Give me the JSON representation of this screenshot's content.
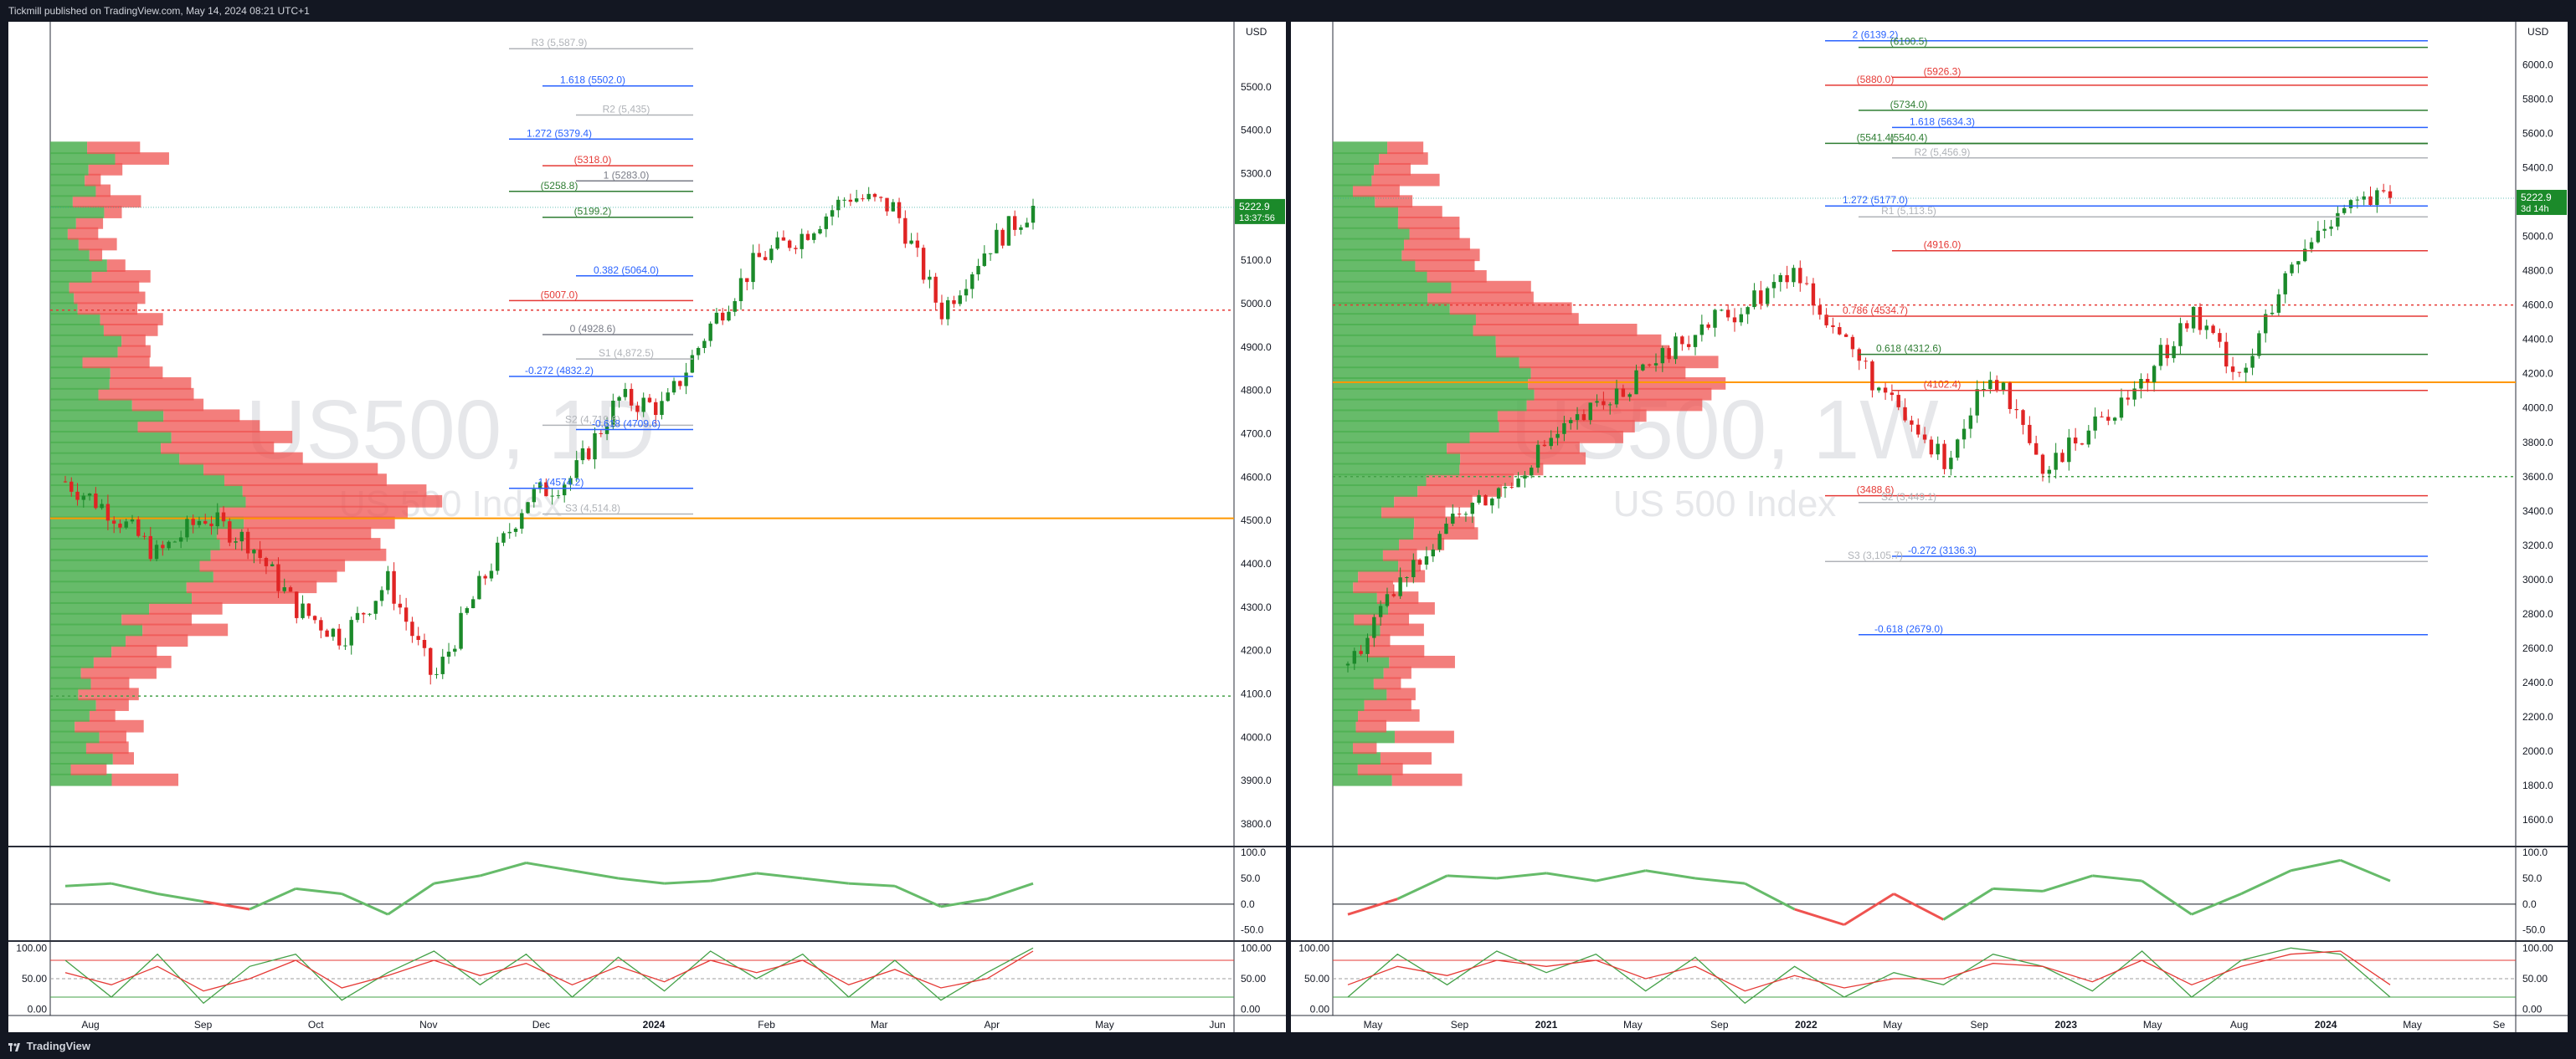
{
  "header": {
    "publisher": "Tickmill published on TradingView.com, May 14, 2024 08:21 UTC+1"
  },
  "footer": {
    "brand": "TradingView"
  },
  "colors": {
    "up": "#26a69a",
    "down": "#ef5350",
    "bullGreen": "#2e7d32",
    "bearRed": "#e53935",
    "orange": "#ff9800",
    "blue": "#2962ff"
  },
  "chart_data": [
    {
      "type": "line",
      "symbol_watermark": "US500, 1D",
      "subtitle_watermark": "US 500 Index",
      "currency": "USD",
      "price_badge": {
        "value": "5222.9",
        "countdown": "13:37:56"
      },
      "ylim": [
        3750,
        5650
      ],
      "y_ticks": [
        "5500.0",
        "5400.0",
        "5300.0",
        "5200.0",
        "5100.0",
        "5000.0",
        "4900.0",
        "4800.0",
        "4700.0",
        "4600.0",
        "4500.0",
        "4400.0",
        "4300.0",
        "4200.0",
        "4100.0",
        "4000.0",
        "3900.0",
        "3800.0"
      ],
      "x_ticks": [
        "Aug",
        "Sep",
        "Oct",
        "Nov",
        "Dec",
        "2024",
        "Feb",
        "Mar",
        "Apr",
        "May",
        "Jun"
      ],
      "close_path": [
        {
          "x": "Aug",
          "y": 4590
        },
        {
          "x": "Aug",
          "y": 4520
        },
        {
          "x": "Aug",
          "y": 4420
        },
        {
          "x": "Sep",
          "y": 4510
        },
        {
          "x": "Sep",
          "y": 4450
        },
        {
          "x": "Sep",
          "y": 4300
        },
        {
          "x": "Oct",
          "y": 4230
        },
        {
          "x": "Oct",
          "y": 4360
        },
        {
          "x": "Oct",
          "y": 4130
        },
        {
          "x": "Nov",
          "y": 4350
        },
        {
          "x": "Nov",
          "y": 4550
        },
        {
          "x": "Dec",
          "y": 4600
        },
        {
          "x": "Dec",
          "y": 4780
        },
        {
          "x": "2024",
          "y": 4760
        },
        {
          "x": "Feb",
          "y": 4950
        },
        {
          "x": "Feb",
          "y": 5100
        },
        {
          "x": "Mar",
          "y": 5160
        },
        {
          "x": "Mar",
          "y": 5250
        },
        {
          "x": "Apr",
          "y": 5220
        },
        {
          "x": "Apr",
          "y": 4980
        },
        {
          "x": "May",
          "y": 5130
        },
        {
          "x": "May",
          "y": 5222
        }
      ],
      "levels": [
        {
          "label": "R3 (5,587.9)",
          "value": 5587.9,
          "color": "#b0b3b8"
        },
        {
          "label": "1.618 (5502.0)",
          "value": 5502.0,
          "color": "#2962ff"
        },
        {
          "label": "R2 (5,435)",
          "value": 5435,
          "color": "#b0b3b8"
        },
        {
          "label": "1.272 (5379.4)",
          "value": 5379.4,
          "color": "#2962ff"
        },
        {
          "label": "(5318.0)",
          "value": 5318.0,
          "color": "#e53935"
        },
        {
          "label": "1 (5283.0)",
          "value": 5283.0,
          "color": "#787b86"
        },
        {
          "label": "(5258.8)",
          "value": 5258.8,
          "color": "#2e7d32"
        },
        {
          "label": "(5199.2)",
          "value": 5199.2,
          "color": "#2e7d32"
        },
        {
          "label": "0.382 (5064.0)",
          "value": 5064.0,
          "color": "#2962ff"
        },
        {
          "label": "(5007.0)",
          "value": 5007.0,
          "color": "#e53935"
        },
        {
          "label": "0 (4928.6)",
          "value": 4928.6,
          "color": "#787b86"
        },
        {
          "label": "S1 (4,872.5)",
          "value": 4872.5,
          "color": "#b0b3b8"
        },
        {
          "label": "-0.272 (4832.2)",
          "value": 4832.2,
          "color": "#2962ff"
        },
        {
          "label": "S2 (4,719.6)",
          "value": 4719.6,
          "color": "#b0b3b8"
        },
        {
          "label": "-0.618 (4709.6)",
          "value": 4709.6,
          "color": "#2962ff"
        },
        {
          "label": "-1 (4574.2)",
          "value": 4574.2,
          "color": "#2962ff"
        },
        {
          "label": "S3 (4,514.8)",
          "value": 4514.8,
          "color": "#b0b3b8"
        }
      ],
      "orange_level": 4505,
      "red_dotted_level": 4985,
      "green_dotted_level": 4095,
      "rsi": {
        "ticks": [
          "100.0",
          "50.0",
          "0.0",
          "-50.0"
        ],
        "ylim": [
          -70,
          110
        ],
        "values": [
          35,
          40,
          20,
          5,
          -10,
          30,
          20,
          -20,
          40,
          55,
          80,
          65,
          50,
          40,
          45,
          60,
          50,
          40,
          35,
          -5,
          10,
          40
        ]
      },
      "stoch": {
        "ticks": [
          "100.00",
          "50.00",
          "0.00"
        ],
        "ylim": [
          -10,
          110
        ],
        "k": [
          80,
          20,
          90,
          10,
          70,
          90,
          15,
          60,
          95,
          40,
          90,
          20,
          85,
          30,
          95,
          50,
          90,
          20,
          80,
          15,
          60,
          100
        ],
        "d": [
          60,
          40,
          70,
          30,
          50,
          80,
          35,
          55,
          80,
          55,
          75,
          40,
          70,
          45,
          80,
          60,
          80,
          40,
          65,
          35,
          50,
          95
        ]
      }
    },
    {
      "type": "line",
      "symbol_watermark": "US500, 1W",
      "subtitle_watermark": "US 500 Index",
      "currency": "USD",
      "price_badge": {
        "value": "5222.9",
        "countdown": "3d 14h"
      },
      "ylim": [
        1450,
        6250
      ],
      "y_ticks": [
        "6000.0",
        "5800.0",
        "5600.0",
        "5400.0",
        "5200.0",
        "5000.0",
        "4800.0",
        "4600.0",
        "4400.0",
        "4200.0",
        "4000.0",
        "3800.0",
        "3600.0",
        "3400.0",
        "3200.0",
        "3000.0",
        "2800.0",
        "2600.0",
        "2400.0",
        "2200.0",
        "2000.0",
        "1800.0",
        "1600.0"
      ],
      "x_ticks": [
        "May",
        "Sep",
        "2021",
        "May",
        "Sep",
        "2022",
        "May",
        "Sep",
        "2023",
        "May",
        "Aug",
        "2024",
        "May",
        "Se"
      ],
      "close_path": [
        {
          "x": "May",
          "y": 2500
        },
        {
          "x": "May",
          "y": 2950
        },
        {
          "x": "Sep",
          "y": 3350
        },
        {
          "x": "Sep",
          "y": 3500
        },
        {
          "x": "2021",
          "y": 3800
        },
        {
          "x": "2021",
          "y": 4000
        },
        {
          "x": "May",
          "y": 4200
        },
        {
          "x": "Sep",
          "y": 4450
        },
        {
          "x": "Sep",
          "y": 4600
        },
        {
          "x": "2022",
          "y": 4800
        },
        {
          "x": "2022",
          "y": 4400
        },
        {
          "x": "May",
          "y": 4000
        },
        {
          "x": "May",
          "y": 3700
        },
        {
          "x": "Sep",
          "y": 4200
        },
        {
          "x": "Sep",
          "y": 3600
        },
        {
          "x": "2023",
          "y": 3900
        },
        {
          "x": "May",
          "y": 4150
        },
        {
          "x": "Aug",
          "y": 4550
        },
        {
          "x": "Aug",
          "y": 4200
        },
        {
          "x": "2024",
          "y": 4800
        },
        {
          "x": "2024",
          "y": 5200
        },
        {
          "x": "May",
          "y": 5222
        }
      ],
      "levels": [
        {
          "label": "2 (6139.2)",
          "value": 6139.2,
          "color": "#2962ff"
        },
        {
          "label": "(6100.5)",
          "value": 6100.5,
          "color": "#2e7d32"
        },
        {
          "label": "(5926.3)",
          "value": 5926.3,
          "color": "#e53935"
        },
        {
          "label": "(5880.0)",
          "value": 5880.0,
          "color": "#e53935"
        },
        {
          "label": "(5734.0)",
          "value": 5734.0,
          "color": "#2e7d32"
        },
        {
          "label": "1.618 (5634.3)",
          "value": 5634.3,
          "color": "#2962ff"
        },
        {
          "label": "(5541.4)",
          "value": 5541.4,
          "color": "#2e7d32"
        },
        {
          "label": "(5540.4)",
          "value": 5540.4,
          "color": "#2e7d32"
        },
        {
          "label": "R2 (5,456.9)",
          "value": 5456.9,
          "color": "#b0b3b8"
        },
        {
          "label": "1.272 (5177.0)",
          "value": 5177.0,
          "color": "#2962ff"
        },
        {
          "label": "R1 (5,113.5)",
          "value": 5113.5,
          "color": "#b0b3b8"
        },
        {
          "label": "(4916.0)",
          "value": 4916.0,
          "color": "#e53935"
        },
        {
          "label": "0.786 (4534.7)",
          "value": 4534.7,
          "color": "#e53935"
        },
        {
          "label": "0.618 (4312.6)",
          "value": 4312.6,
          "color": "#2e7d32"
        },
        {
          "label": "(4102.4)",
          "value": 4102.4,
          "color": "#e53935"
        },
        {
          "label": "(3488.6)",
          "value": 3488.6,
          "color": "#e53935"
        },
        {
          "label": "S2 (3,449.1)",
          "value": 3449.1,
          "color": "#b0b3b8"
        },
        {
          "label": "-0.272 (3136.3)",
          "value": 3136.3,
          "color": "#2962ff"
        },
        {
          "label": "S3 (3,105.7)",
          "value": 3105.7,
          "color": "#b0b3b8"
        },
        {
          "label": "-0.618 (2679.0)",
          "value": 2679.0,
          "color": "#2962ff"
        }
      ],
      "orange_level": 4150,
      "red_dotted_level": 4600,
      "green_dotted_level": 3600,
      "rsi": {
        "ticks": [
          "100.0",
          "50.0",
          "0.0",
          "-50.0"
        ],
        "ylim": [
          -70,
          110
        ],
        "values": [
          -20,
          10,
          55,
          50,
          60,
          45,
          65,
          50,
          40,
          -10,
          -40,
          20,
          -30,
          30,
          25,
          55,
          45,
          -20,
          20,
          65,
          85,
          45
        ]
      },
      "stoch": {
        "ticks": [
          "100.00",
          "50.00",
          "0.00"
        ],
        "ylim": [
          -10,
          110
        ],
        "k": [
          20,
          90,
          40,
          95,
          60,
          90,
          30,
          85,
          10,
          70,
          20,
          60,
          40,
          90,
          70,
          30,
          95,
          20,
          80,
          100,
          90,
          20
        ],
        "d": [
          40,
          70,
          55,
          80,
          70,
          80,
          50,
          70,
          30,
          55,
          35,
          50,
          50,
          75,
          70,
          45,
          80,
          40,
          70,
          90,
          95,
          40
        ]
      }
    }
  ]
}
